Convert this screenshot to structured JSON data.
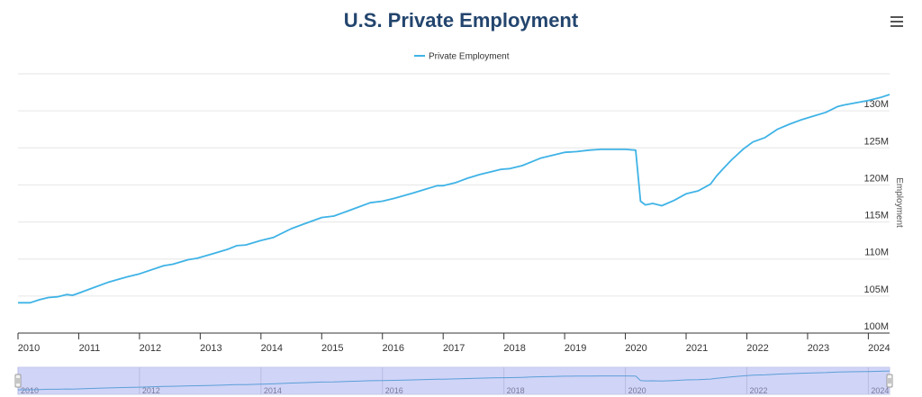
{
  "chart_data": {
    "type": "line",
    "title": "U.S. Private Employment",
    "xlabel": "",
    "ylabel": "Employment",
    "ylim": [
      100,
      135
    ],
    "xlim": [
      2010.0,
      2024.35
    ],
    "y_ticks": [
      {
        "value": 100,
        "label": "100M"
      },
      {
        "value": 105,
        "label": "105M"
      },
      {
        "value": 110,
        "label": "110M"
      },
      {
        "value": 115,
        "label": "115M"
      },
      {
        "value": 120,
        "label": "120M"
      },
      {
        "value": 125,
        "label": "125M"
      },
      {
        "value": 130,
        "label": "130M"
      }
    ],
    "x_ticks": [
      {
        "value": 2010,
        "label": "2010"
      },
      {
        "value": 2011,
        "label": "2011"
      },
      {
        "value": 2012,
        "label": "2012"
      },
      {
        "value": 2013,
        "label": "2013"
      },
      {
        "value": 2014,
        "label": "2014"
      },
      {
        "value": 2015,
        "label": "2015"
      },
      {
        "value": 2016,
        "label": "2016"
      },
      {
        "value": 2017,
        "label": "2017"
      },
      {
        "value": 2018,
        "label": "2018"
      },
      {
        "value": 2019,
        "label": "2019"
      },
      {
        "value": 2020,
        "label": "2020"
      },
      {
        "value": 2021,
        "label": "2021"
      },
      {
        "value": 2022,
        "label": "2022"
      },
      {
        "value": 2023,
        "label": "2023"
      },
      {
        "value": 2024,
        "label": "2024"
      }
    ],
    "navigator_ticks": [
      {
        "value": 2010,
        "label": "2010"
      },
      {
        "value": 2012,
        "label": "2012"
      },
      {
        "value": 2014,
        "label": "2014"
      },
      {
        "value": 2016,
        "label": "2016"
      },
      {
        "value": 2018,
        "label": "2018"
      },
      {
        "value": 2020,
        "label": "2020"
      },
      {
        "value": 2022,
        "label": "2022"
      },
      {
        "value": 2024,
        "label": "2024"
      }
    ],
    "series": [
      {
        "name": "Private Employment",
        "color": "#3fb3e6",
        "x": [
          2010.0,
          2010.2,
          2010.35,
          2010.5,
          2010.65,
          2010.8,
          2010.9,
          2011.0,
          2011.2,
          2011.5,
          2011.8,
          2012.0,
          2012.4,
          2012.55,
          2012.8,
          2012.95,
          2013.2,
          2013.45,
          2013.6,
          2013.75,
          2014.0,
          2014.2,
          2014.5,
          2014.7,
          2014.9,
          2015.0,
          2015.2,
          2015.4,
          2015.6,
          2015.8,
          2016.0,
          2016.2,
          2016.5,
          2016.7,
          2016.9,
          2017.0,
          2017.2,
          2017.4,
          2017.6,
          2017.8,
          2017.95,
          2018.1,
          2018.3,
          2018.45,
          2018.6,
          2018.8,
          2019.0,
          2019.2,
          2019.4,
          2019.6,
          2019.8,
          2020.0,
          2020.17,
          2020.25,
          2020.33,
          2020.45,
          2020.6,
          2020.8,
          2021.0,
          2021.2,
          2021.4,
          2021.5,
          2021.6,
          2021.75,
          2021.95,
          2022.1,
          2022.3,
          2022.5,
          2022.7,
          2022.9,
          2023.1,
          2023.3,
          2023.5,
          2023.6,
          2023.8,
          2024.0,
          2024.2,
          2024.35
        ],
        "values": [
          104.1,
          104.1,
          104.5,
          104.8,
          104.9,
          105.2,
          105.1,
          105.4,
          106.0,
          106.9,
          107.6,
          108.0,
          109.1,
          109.3,
          109.9,
          110.1,
          110.7,
          111.3,
          111.8,
          111.9,
          112.5,
          112.9,
          114.1,
          114.7,
          115.3,
          115.6,
          115.8,
          116.4,
          117.0,
          117.6,
          117.8,
          118.2,
          118.9,
          119.4,
          119.9,
          119.9,
          120.3,
          120.9,
          121.4,
          121.8,
          122.1,
          122.2,
          122.6,
          123.1,
          123.6,
          124.0,
          124.4,
          124.5,
          124.7,
          124.8,
          124.8,
          124.8,
          124.7,
          117.8,
          117.3,
          117.5,
          117.2,
          117.9,
          118.8,
          119.2,
          120.1,
          121.2,
          122.1,
          123.4,
          124.9,
          125.8,
          126.4,
          127.5,
          128.2,
          128.8,
          129.3,
          129.8,
          130.6,
          130.8,
          131.1,
          131.4,
          131.8,
          132.2
        ]
      }
    ]
  },
  "legend": {
    "label": "Private Employment",
    "placement": "top-center"
  },
  "menu": {
    "icon": "hamburger-menu-icon"
  },
  "colors": {
    "title": "#23456e",
    "series": "#3fb3e6",
    "grid": "#e6e6e6",
    "navigator_fill": "#d0d4f7",
    "navigator_series": "#5b9fd8"
  }
}
